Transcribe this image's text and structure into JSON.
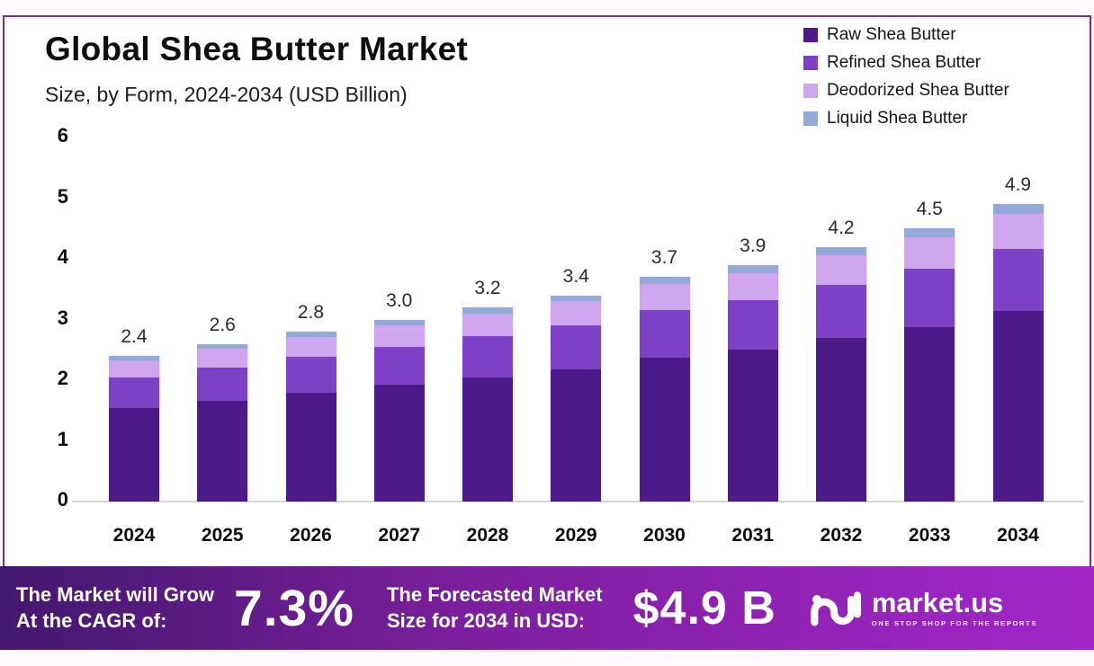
{
  "page": {
    "frame_color": "#7b2d92",
    "background": "#ffffff"
  },
  "header": {
    "title": "Global Shea Butter Market",
    "subtitle": "Size, by Form, 2024-2034 (USD Billion)"
  },
  "chart_data": {
    "type": "bar",
    "stacked": true,
    "title": "Global Shea Butter Market Size, by Form, 2024-2034 (USD Billion)",
    "categories": [
      "2024",
      "2025",
      "2026",
      "2027",
      "2028",
      "2029",
      "2030",
      "2031",
      "2032",
      "2033",
      "2034"
    ],
    "series": [
      {
        "name": "Raw Shea Butter",
        "color": "#4d1a89",
        "values": [
          1.54,
          1.66,
          1.79,
          1.92,
          2.05,
          2.18,
          2.37,
          2.5,
          2.69,
          2.88,
          3.14
        ]
      },
      {
        "name": "Refined Shea Butter",
        "color": "#7e41c6",
        "values": [
          0.5,
          0.55,
          0.59,
          0.63,
          0.68,
          0.72,
          0.78,
          0.82,
          0.88,
          0.95,
          1.03
        ]
      },
      {
        "name": "Deodorized Shea Butter",
        "color": "#cfa6ee",
        "values": [
          0.28,
          0.31,
          0.33,
          0.35,
          0.37,
          0.4,
          0.43,
          0.45,
          0.49,
          0.52,
          0.57
        ]
      },
      {
        "name": "Liquid Shea Butter",
        "color": "#93a9d8",
        "values": [
          0.08,
          0.08,
          0.09,
          0.1,
          0.1,
          0.1,
          0.12,
          0.13,
          0.14,
          0.15,
          0.16
        ]
      }
    ],
    "totals": [
      2.4,
      2.6,
      2.8,
      3.0,
      3.2,
      3.4,
      3.7,
      3.9,
      4.2,
      4.5,
      4.9
    ],
    "total_labels": [
      "2.4",
      "2.6",
      "2.8",
      "3.0",
      "3.2",
      "3.4",
      "3.7",
      "3.9",
      "4.2",
      "4.5",
      "4.9"
    ],
    "xlabel": "",
    "ylabel": "",
    "ylim": [
      0,
      6
    ],
    "yticks": [
      0,
      1,
      2,
      3,
      4,
      5,
      6
    ],
    "grid": false,
    "legend_position": "top-right"
  },
  "footer": {
    "cagr_label_line1": "The Market will Grow",
    "cagr_label_line2": "At the CAGR of:",
    "cagr_value": "7.3%",
    "forecast_label_line1": "The Forecasted Market",
    "forecast_label_line2": "Size for 2034 in USD:",
    "forecast_value": "$4.9 B",
    "brand": {
      "name": "market.us",
      "tagline": "ONE STOP SHOP FOR THE REPORTS"
    },
    "gradient": [
      "#44186e",
      "#a326c9"
    ]
  }
}
